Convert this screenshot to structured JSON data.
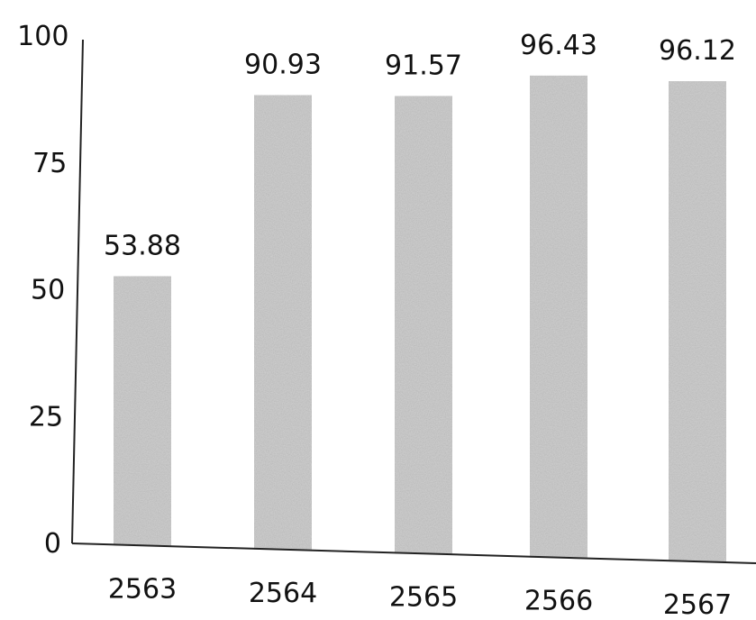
{
  "chart_data": {
    "type": "bar",
    "categories": [
      "2563",
      "2564",
      "2565",
      "2566",
      "2567"
    ],
    "values": [
      53.88,
      90.93,
      91.57,
      96.43,
      96.12
    ],
    "data_labels": [
      "53.88",
      "90.93",
      "91.57",
      "96.43",
      "96.12"
    ],
    "yticks": [
      "0",
      "25",
      "50",
      "75",
      "100"
    ],
    "ylim": [
      0,
      100
    ],
    "bar_color": "#d6d6d6",
    "axis_color": "#222222",
    "grid": false,
    "legend": "none"
  }
}
